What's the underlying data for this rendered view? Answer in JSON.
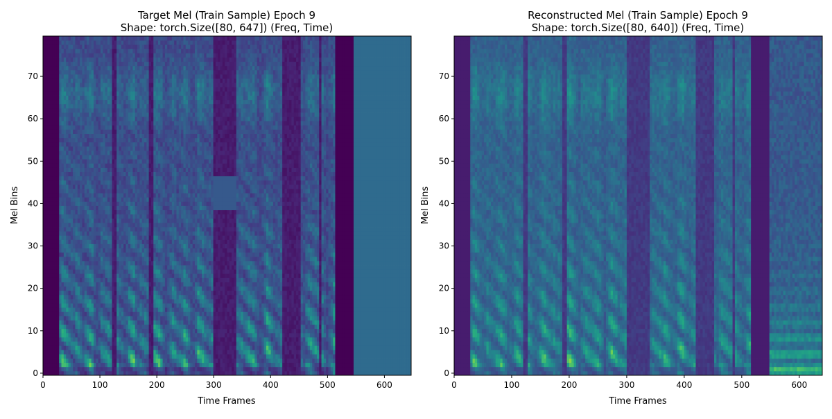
{
  "chart_data": [
    {
      "type": "heatmap",
      "title_line1": "Target Mel (Train Sample) Epoch 9",
      "title_line2": "Shape: torch.Size([80, 647]) (Freq, Time)",
      "xlabel": "Time Frames",
      "ylabel": "Mel Bins",
      "xlim": [
        0,
        647
      ],
      "ylim": [
        -0.5,
        79.5
      ],
      "xticks": [
        0,
        100,
        200,
        300,
        400,
        500,
        600
      ],
      "yticks": [
        0,
        10,
        20,
        30,
        40,
        50,
        60,
        70
      ],
      "colormap": "viridis",
      "grid": false,
      "legend": "none",
      "silent_frames": [
        [
          0,
          30
        ],
        [
          515,
          545
        ]
      ],
      "padding_frames": [
        545,
        647
      ],
      "silence_level": 0.0,
      "padding_level": 0.35,
      "bright_color_hex": "#e4e419",
      "dark_color_hex": "#440154",
      "padding_color_hex": "#33638d"
    },
    {
      "type": "heatmap",
      "title_line1": "Reconstructed Mel (Train Sample) Epoch 9",
      "title_line2": "Shape: torch.Size([80, 640]) (Freq, Time)",
      "xlabel": "Time Frames",
      "ylabel": "Mel Bins",
      "xlim": [
        0,
        640
      ],
      "ylim": [
        -0.5,
        79.5
      ],
      "xticks": [
        0,
        100,
        200,
        300,
        400,
        500,
        600
      ],
      "yticks": [
        0,
        10,
        20,
        30,
        40,
        50,
        60,
        70
      ],
      "colormap": "viridis",
      "grid": false,
      "legend": "none",
      "silent_frames": [
        [
          0,
          30
        ],
        [
          515,
          548
        ]
      ],
      "padding_frames": [
        548,
        640
      ],
      "silence_level": 0.08,
      "padding_level": "noisy",
      "bright_color_hex": "#c8e020",
      "dark_color_hex": "#46327e"
    }
  ]
}
